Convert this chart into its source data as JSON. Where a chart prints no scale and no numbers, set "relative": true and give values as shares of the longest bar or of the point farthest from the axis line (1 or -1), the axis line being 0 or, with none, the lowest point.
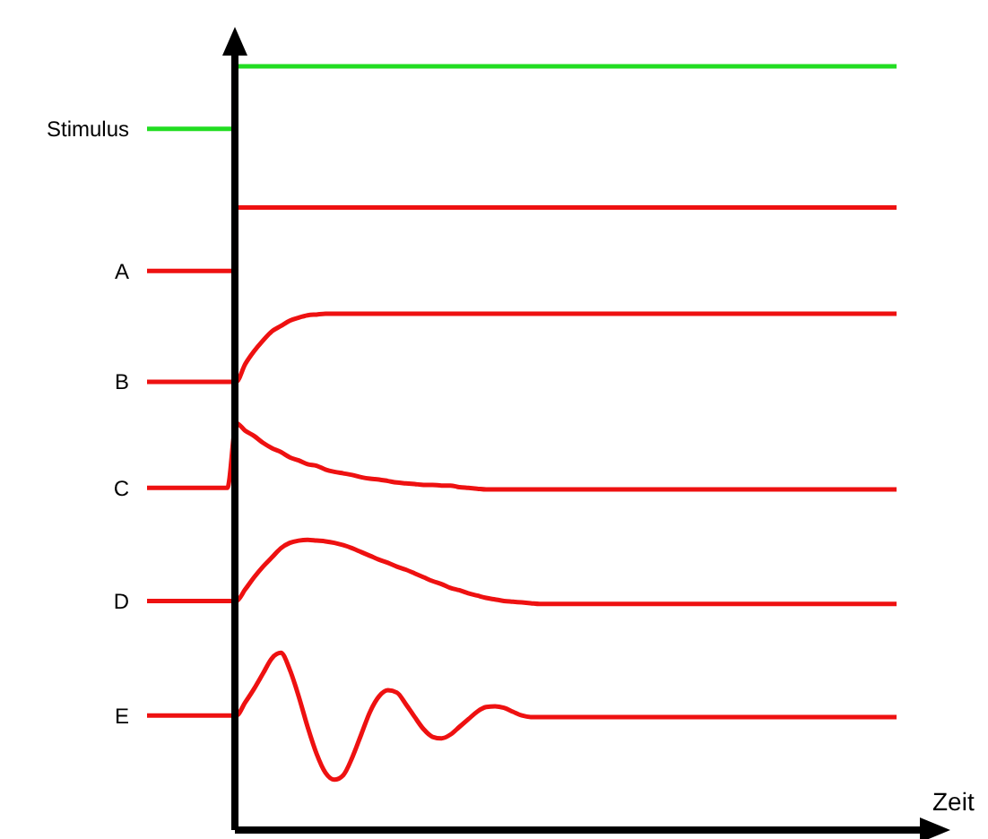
{
  "chart_data": {
    "type": "line",
    "xlabel": "Zeit",
    "relative": true,
    "categories": [
      null,
      null,
      null,
      null,
      null,
      null,
      null,
      null,
      null,
      null,
      null,
      null,
      null,
      null,
      null,
      null,
      null,
      null,
      null,
      null,
      null,
      null,
      null,
      null,
      null,
      null,
      null,
      null,
      null,
      null,
      null,
      null,
      null,
      null,
      null,
      null,
      null,
      null,
      null,
      null,
      null,
      null,
      null,
      null,
      null,
      null,
      null,
      null,
      null,
      null,
      null,
      null,
      null,
      null,
      null,
      null,
      null,
      null,
      null,
      null,
      null,
      null,
      null,
      null,
      null,
      null,
      null,
      null,
      null,
      null,
      null,
      null,
      null,
      null,
      null,
      null,
      null,
      null,
      null,
      null,
      null,
      null,
      null,
      null,
      null
    ],
    "series": [
      {
        "name": "Stimulus",
        "type": "step",
        "color": "#22dd22",
        "values": [
          0.918,
          0.918,
          0.918,
          0.918,
          0.918,
          0.918,
          0.918,
          0.918,
          0.918,
          0.918,
          1,
          1,
          1,
          1,
          1,
          1,
          1,
          1,
          1,
          1,
          1,
          1,
          1,
          1,
          1,
          1,
          1,
          1,
          1,
          1,
          1,
          1,
          1,
          1,
          1,
          1,
          1,
          1,
          1,
          1,
          1,
          1,
          1,
          1,
          1,
          1,
          1,
          1,
          1,
          1,
          1,
          1,
          1,
          1,
          1,
          1,
          1,
          1,
          1,
          1,
          1,
          1,
          1,
          1,
          1,
          1,
          1,
          1,
          1,
          1,
          1,
          1,
          1,
          1,
          1,
          1,
          1,
          1,
          1,
          1,
          1,
          1,
          1,
          1,
          1
        ]
      },
      {
        "name": "A",
        "type": "step",
        "color": "#ee1111",
        "values": [
          0.732,
          0.732,
          0.732,
          0.732,
          0.732,
          0.732,
          0.732,
          0.732,
          0.732,
          0.732,
          0.815,
          0.815,
          0.815,
          0.815,
          0.815,
          0.815,
          0.815,
          0.815,
          0.815,
          0.815,
          0.815,
          0.815,
          0.815,
          0.815,
          0.815,
          0.815,
          0.815,
          0.815,
          0.815,
          0.815,
          0.815,
          0.815,
          0.815,
          0.815,
          0.815,
          0.815,
          0.815,
          0.815,
          0.815,
          0.815,
          0.815,
          0.815,
          0.815,
          0.815,
          0.815,
          0.815,
          0.815,
          0.815,
          0.815,
          0.815,
          0.815,
          0.815,
          0.815,
          0.815,
          0.815,
          0.815,
          0.815,
          0.815,
          0.815,
          0.815,
          0.815,
          0.815,
          0.815,
          0.815,
          0.815,
          0.815,
          0.815,
          0.815,
          0.815,
          0.815,
          0.815,
          0.815,
          0.815,
          0.815,
          0.815,
          0.815,
          0.815,
          0.815,
          0.815,
          0.815,
          0.815,
          0.815,
          0.815,
          0.815,
          0.815
        ]
      },
      {
        "name": "B",
        "type": "line",
        "color": "#ee1111",
        "values": [
          0.587,
          0.587,
          0.587,
          0.587,
          0.587,
          0.587,
          0.587,
          0.587,
          0.587,
          0.587,
          0.587,
          0.61,
          0.627,
          0.641,
          0.653,
          0.66,
          0.667,
          0.671,
          0.674,
          0.675,
          0.676,
          0.676,
          0.676,
          0.676,
          0.676,
          0.676,
          0.676,
          0.676,
          0.676,
          0.676,
          0.676,
          0.676,
          0.676,
          0.676,
          0.676,
          0.676,
          0.676,
          0.676,
          0.676,
          0.676,
          0.676,
          0.676,
          0.676,
          0.676,
          0.676,
          0.676,
          0.676,
          0.676,
          0.676,
          0.676,
          0.676,
          0.676,
          0.676,
          0.676,
          0.676,
          0.676,
          0.676,
          0.676,
          0.676,
          0.676,
          0.676,
          0.676,
          0.676,
          0.676,
          0.676,
          0.676,
          0.676,
          0.676,
          0.676,
          0.676,
          0.676,
          0.676,
          0.676,
          0.676,
          0.676,
          0.676,
          0.676,
          0.676,
          0.676,
          0.676,
          0.676,
          0.676,
          0.676,
          0.676,
          0.676
        ]
      },
      {
        "name": "C",
        "type": "line",
        "color": "#ee1111",
        "values": [
          0.448,
          0.448,
          0.448,
          0.448,
          0.448,
          0.448,
          0.448,
          0.448,
          0.448,
          0.448,
          0.533,
          0.523,
          0.516,
          0.507,
          0.5,
          0.495,
          0.488,
          0.484,
          0.479,
          0.477,
          0.472,
          0.469,
          0.467,
          0.465,
          0.462,
          0.46,
          0.459,
          0.457,
          0.455,
          0.454,
          0.453,
          0.452,
          0.452,
          0.451,
          0.451,
          0.449,
          0.448,
          0.447,
          0.446,
          0.446,
          0.446,
          0.446,
          0.446,
          0.446,
          0.446,
          0.446,
          0.446,
          0.446,
          0.446,
          0.446,
          0.446,
          0.446,
          0.446,
          0.446,
          0.446,
          0.446,
          0.446,
          0.446,
          0.446,
          0.446,
          0.446,
          0.446,
          0.446,
          0.446,
          0.446,
          0.446,
          0.446,
          0.446,
          0.446,
          0.446,
          0.446,
          0.446,
          0.446,
          0.446,
          0.446,
          0.446,
          0.446,
          0.446,
          0.446,
          0.446,
          0.446,
          0.446,
          0.446,
          0.446,
          0.446
        ]
      },
      {
        "name": "D",
        "type": "line",
        "color": "#ee1111",
        "values": [
          0.3,
          0.3,
          0.3,
          0.3,
          0.3,
          0.3,
          0.3,
          0.3,
          0.3,
          0.3,
          0.3,
          0.315,
          0.331,
          0.345,
          0.357,
          0.369,
          0.376,
          0.379,
          0.38,
          0.379,
          0.378,
          0.376,
          0.373,
          0.369,
          0.364,
          0.359,
          0.354,
          0.35,
          0.345,
          0.341,
          0.336,
          0.331,
          0.326,
          0.322,
          0.317,
          0.314,
          0.31,
          0.307,
          0.304,
          0.302,
          0.3,
          0.299,
          0.298,
          0.297,
          0.296,
          0.296,
          0.296,
          0.296,
          0.296,
          0.296,
          0.296,
          0.296,
          0.296,
          0.296,
          0.296,
          0.296,
          0.296,
          0.296,
          0.296,
          0.296,
          0.296,
          0.296,
          0.296,
          0.296,
          0.296,
          0.296,
          0.296,
          0.296,
          0.296,
          0.296,
          0.296,
          0.296,
          0.296,
          0.296,
          0.296,
          0.296,
          0.296,
          0.296,
          0.296,
          0.296,
          0.296,
          0.296,
          0.296,
          0.296,
          0.296
        ]
      },
      {
        "name": "E",
        "type": "line",
        "color": "#ee1111",
        "values": [
          0.15,
          0.15,
          0.15,
          0.15,
          0.15,
          0.15,
          0.15,
          0.15,
          0.15,
          0.15,
          0.15,
          0.167,
          0.185,
          0.205,
          0.225,
          0.232,
          0.21,
          0.175,
          0.135,
          0.1,
          0.075,
          0.066,
          0.072,
          0.095,
          0.125,
          0.155,
          0.175,
          0.183,
          0.18,
          0.165,
          0.148,
          0.132,
          0.122,
          0.12,
          0.125,
          0.135,
          0.145,
          0.155,
          0.161,
          0.162,
          0.16,
          0.155,
          0.15,
          0.148,
          0.148,
          0.148,
          0.148,
          0.148,
          0.148,
          0.148,
          0.148,
          0.148,
          0.148,
          0.148,
          0.148,
          0.148,
          0.148,
          0.148,
          0.148,
          0.148,
          0.148,
          0.148,
          0.148,
          0.148,
          0.148,
          0.148,
          0.148,
          0.148,
          0.148,
          0.148,
          0.148,
          0.148,
          0.148,
          0.148,
          0.148,
          0.148,
          0.148,
          0.148,
          0.148,
          0.148,
          0.148,
          0.148,
          0.148,
          0.148,
          0.148
        ]
      }
    ]
  }
}
